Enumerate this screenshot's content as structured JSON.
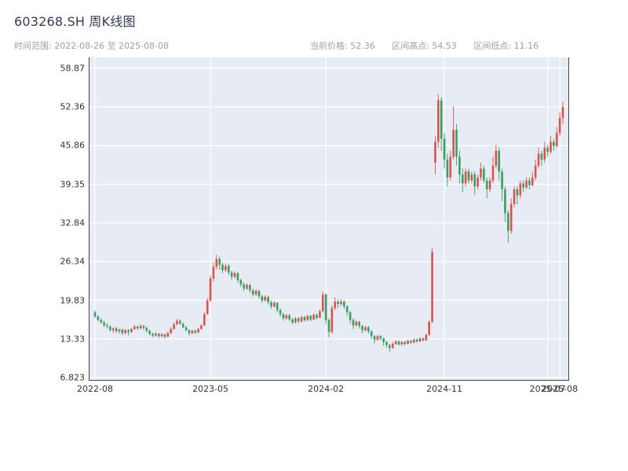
{
  "header": {
    "title": "603268.SH 周K线图",
    "date_range_text": "时间范围: 2022-08-26 至 2025-08-08",
    "stats": {
      "current": "当前价格: 52.36",
      "high": "区间高点: 54.53",
      "low": "区间低点: 11.16"
    }
  },
  "chart_data": {
    "type": "candlestick",
    "title": "603268.SH 周K线图",
    "interval": "weekly",
    "date_range": {
      "start": "2022-08-26",
      "end": "2025-08-08"
    },
    "current_price": 52.36,
    "range_high": 54.53,
    "range_low": 11.16,
    "ylim": [
      6.823,
      58.87
    ],
    "y_ticks": [
      58.87,
      52.36,
      45.86,
      39.35,
      32.84,
      26.34,
      19.83,
      13.33,
      6.823
    ],
    "x_ticks": [
      {
        "label": "2022-08",
        "week": 0
      },
      {
        "label": "2023-05",
        "week": 38
      },
      {
        "label": "2024-02",
        "week": 76
      },
      {
        "label": "2024-11",
        "week": 115
      },
      {
        "label": "2025-07",
        "week": 149
      },
      {
        "label": "2025-08",
        "week": 153
      }
    ],
    "colors": {
      "up": "#d9544d",
      "down": "#3a9e64",
      "plot_bg": "#e6ebf4",
      "grid": "#ffffff",
      "axis": "#444444"
    },
    "legend": {
      "up_means": "上涨(红)",
      "down_means": "下跌(绿)"
    },
    "candles": [
      [
        17.8,
        18.1,
        16.9,
        17.1
      ],
      [
        17.1,
        17.4,
        16.3,
        16.5
      ],
      [
        16.5,
        16.9,
        15.9,
        16.1
      ],
      [
        16.1,
        16.4,
        15.3,
        15.6
      ],
      [
        15.6,
        16.0,
        15.1,
        15.4
      ],
      [
        15.4,
        15.7,
        14.6,
        14.8
      ],
      [
        14.8,
        15.3,
        14.3,
        15.1
      ],
      [
        15.1,
        15.4,
        14.4,
        14.6
      ],
      [
        14.6,
        15.1,
        14.2,
        14.9
      ],
      [
        14.9,
        15.1,
        14.0,
        14.3
      ],
      [
        14.3,
        15.0,
        14.1,
        14.8
      ],
      [
        14.8,
        15.0,
        13.9,
        14.5
      ],
      [
        14.5,
        15.2,
        14.3,
        15.0
      ],
      [
        15.0,
        15.7,
        14.8,
        15.4
      ],
      [
        15.4,
        15.6,
        14.9,
        15.1
      ],
      [
        15.1,
        15.8,
        15.0,
        15.5
      ],
      [
        15.5,
        15.7,
        14.8,
        15.2
      ],
      [
        15.2,
        15.4,
        14.4,
        14.7
      ],
      [
        14.7,
        14.9,
        13.9,
        14.2
      ],
      [
        14.2,
        14.4,
        13.6,
        13.9
      ],
      [
        13.9,
        14.5,
        13.7,
        14.2
      ],
      [
        14.2,
        14.3,
        13.4,
        13.8
      ],
      [
        13.8,
        14.3,
        13.5,
        14.1
      ],
      [
        14.1,
        14.2,
        13.3,
        13.7
      ],
      [
        13.7,
        14.6,
        13.6,
        14.3
      ],
      [
        14.3,
        15.3,
        14.2,
        15.0
      ],
      [
        15.0,
        16.1,
        14.9,
        15.8
      ],
      [
        15.8,
        16.7,
        15.6,
        16.4
      ],
      [
        16.4,
        16.6,
        15.7,
        15.9
      ],
      [
        15.9,
        16.1,
        15.1,
        15.3
      ],
      [
        15.3,
        15.5,
        14.6,
        14.8
      ],
      [
        14.8,
        15.0,
        13.9,
        14.3
      ],
      [
        14.3,
        14.9,
        14.1,
        14.7
      ],
      [
        14.7,
        14.9,
        14.2,
        14.4
      ],
      [
        14.4,
        15.2,
        14.3,
        15.0
      ],
      [
        15.0,
        15.8,
        14.9,
        15.6
      ],
      [
        15.6,
        17.8,
        15.5,
        17.5
      ],
      [
        17.5,
        20.2,
        17.4,
        19.8
      ],
      [
        19.8,
        24.0,
        19.6,
        23.5
      ],
      [
        23.5,
        26.2,
        23.0,
        25.5
      ],
      [
        25.5,
        27.5,
        25.0,
        26.8
      ],
      [
        26.8,
        27.2,
        25.0,
        25.8
      ],
      [
        25.8,
        26.2,
        24.4,
        24.9
      ],
      [
        24.9,
        26.0,
        24.6,
        25.6
      ],
      [
        25.6,
        25.9,
        24.1,
        24.5
      ],
      [
        24.5,
        24.8,
        23.3,
        23.8
      ],
      [
        23.8,
        24.7,
        23.5,
        24.4
      ],
      [
        24.4,
        24.6,
        22.8,
        23.2
      ],
      [
        23.2,
        23.5,
        22.1,
        22.5
      ],
      [
        22.5,
        22.8,
        21.4,
        21.8
      ],
      [
        21.8,
        22.7,
        21.6,
        22.4
      ],
      [
        22.4,
        22.6,
        21.1,
        21.5
      ],
      [
        21.5,
        21.8,
        20.4,
        20.8
      ],
      [
        20.8,
        21.7,
        20.6,
        21.4
      ],
      [
        21.4,
        21.6,
        20.1,
        20.5
      ],
      [
        20.5,
        20.8,
        19.4,
        19.8
      ],
      [
        19.8,
        20.7,
        19.6,
        20.4
      ],
      [
        20.4,
        20.6,
        19.1,
        19.5
      ],
      [
        19.5,
        19.8,
        18.4,
        18.8
      ],
      [
        18.8,
        19.7,
        18.6,
        19.4
      ],
      [
        19.4,
        19.5,
        17.8,
        18.2
      ],
      [
        18.2,
        18.5,
        17.1,
        17.5
      ],
      [
        17.5,
        17.7,
        16.4,
        16.8
      ],
      [
        16.8,
        17.5,
        16.6,
        17.3
      ],
      [
        17.3,
        17.5,
        16.3,
        16.6
      ],
      [
        16.6,
        16.8,
        15.8,
        16.1
      ],
      [
        16.1,
        17.0,
        15.9,
        16.8
      ],
      [
        16.8,
        17.0,
        16.0,
        16.3
      ],
      [
        16.3,
        17.2,
        16.1,
        17.0
      ],
      [
        17.0,
        17.2,
        16.2,
        16.5
      ],
      [
        16.5,
        17.4,
        16.3,
        17.2
      ],
      [
        17.2,
        17.4,
        16.3,
        16.6
      ],
      [
        16.6,
        17.6,
        16.4,
        17.4
      ],
      [
        17.4,
        17.6,
        16.6,
        16.9
      ],
      [
        16.9,
        18.3,
        16.8,
        18.0
      ],
      [
        18.0,
        21.3,
        17.8,
        20.8
      ],
      [
        20.8,
        21.0,
        15.8,
        16.5
      ],
      [
        16.5,
        16.8,
        13.6,
        14.5
      ],
      [
        14.5,
        19.0,
        14.2,
        18.5
      ],
      [
        18.5,
        20.3,
        18.2,
        19.6
      ],
      [
        19.6,
        20.0,
        18.5,
        19.2
      ],
      [
        19.2,
        20.0,
        18.9,
        19.6
      ],
      [
        19.6,
        19.8,
        18.4,
        18.8
      ],
      [
        18.8,
        19.0,
        17.2,
        17.8
      ],
      [
        17.8,
        18.0,
        15.9,
        16.5
      ],
      [
        16.5,
        16.8,
        15.0,
        15.6
      ],
      [
        15.6,
        16.5,
        15.4,
        16.2
      ],
      [
        16.2,
        16.4,
        15.1,
        15.5
      ],
      [
        15.5,
        15.7,
        14.3,
        14.8
      ],
      [
        14.8,
        15.5,
        14.6,
        15.3
      ],
      [
        15.3,
        15.5,
        14.2,
        14.6
      ],
      [
        14.6,
        14.8,
        13.3,
        13.8
      ],
      [
        13.8,
        14.0,
        12.6,
        13.2
      ],
      [
        13.2,
        14.0,
        13.0,
        13.8
      ],
      [
        13.8,
        14.0,
        13.1,
        13.4
      ],
      [
        13.4,
        13.6,
        12.2,
        12.8
      ],
      [
        12.8,
        13.0,
        11.8,
        12.3
      ],
      [
        12.3,
        12.5,
        11.16,
        11.8
      ],
      [
        11.8,
        12.8,
        11.7,
        12.5
      ],
      [
        12.5,
        13.1,
        12.3,
        12.9
      ],
      [
        12.9,
        13.1,
        12.2,
        12.4
      ],
      [
        12.4,
        13.0,
        12.2,
        12.8
      ],
      [
        12.8,
        13.0,
        12.2,
        12.5
      ],
      [
        12.5,
        13.2,
        12.4,
        13.0
      ],
      [
        13.0,
        13.2,
        12.5,
        12.7
      ],
      [
        12.7,
        13.4,
        12.6,
        13.2
      ],
      [
        13.2,
        13.4,
        12.7,
        12.9
      ],
      [
        12.9,
        13.6,
        12.8,
        13.4
      ],
      [
        13.4,
        13.6,
        12.9,
        13.1
      ],
      [
        13.1,
        14.2,
        13.0,
        14.0
      ],
      [
        14.0,
        16.5,
        13.9,
        16.2
      ],
      [
        16.2,
        28.6,
        16.0,
        28.0
      ],
      [
        43.0,
        47.5,
        41.0,
        46.5
      ],
      [
        46.5,
        54.53,
        45.5,
        53.5
      ],
      [
        53.5,
        54.0,
        45.0,
        47.0
      ],
      [
        47.0,
        48.0,
        42.0,
        43.5
      ],
      [
        43.5,
        44.5,
        39.0,
        40.5
      ],
      [
        40.5,
        45.0,
        40.0,
        44.0
      ],
      [
        44.0,
        52.5,
        43.5,
        48.5
      ],
      [
        48.5,
        49.5,
        42.5,
        44.0
      ],
      [
        44.0,
        45.0,
        39.5,
        41.0
      ],
      [
        41.0,
        42.0,
        38.0,
        39.5
      ],
      [
        39.5,
        42.0,
        39.0,
        41.5
      ],
      [
        41.5,
        42.0,
        39.5,
        40.0
      ],
      [
        40.0,
        41.5,
        39.5,
        41.0
      ],
      [
        41.0,
        41.5,
        37.5,
        39.0
      ],
      [
        39.0,
        41.0,
        38.5,
        40.5
      ],
      [
        40.5,
        43.0,
        40.0,
        42.0
      ],
      [
        42.0,
        42.5,
        39.5,
        40.0
      ],
      [
        40.0,
        40.5,
        37.0,
        38.5
      ],
      [
        38.5,
        40.5,
        38.0,
        40.0
      ],
      [
        40.0,
        44.0,
        39.5,
        42.5
      ],
      [
        42.5,
        46.0,
        42.0,
        45.0
      ],
      [
        45.0,
        45.5,
        40.0,
        41.5
      ],
      [
        41.5,
        42.0,
        36.5,
        38.5
      ],
      [
        38.5,
        39.0,
        33.0,
        34.5
      ],
      [
        34.5,
        35.0,
        29.5,
        31.5
      ],
      [
        31.5,
        37.0,
        31.0,
        36.0
      ],
      [
        36.0,
        39.0,
        35.5,
        38.5
      ],
      [
        38.5,
        39.0,
        36.0,
        37.5
      ],
      [
        37.5,
        40.0,
        37.0,
        39.5
      ],
      [
        39.5,
        40.0,
        38.0,
        38.8
      ],
      [
        38.8,
        40.5,
        38.5,
        40.0
      ],
      [
        40.0,
        40.5,
        38.5,
        39.2
      ],
      [
        39.2,
        41.5,
        39.0,
        40.5
      ],
      [
        40.5,
        43.5,
        40.0,
        42.5
      ],
      [
        42.5,
        45.5,
        42.0,
        44.5
      ],
      [
        44.5,
        45.0,
        42.5,
        43.5
      ],
      [
        43.5,
        46.5,
        43.0,
        45.5
      ],
      [
        45.5,
        46.0,
        44.0,
        44.8
      ],
      [
        44.8,
        47.5,
        44.5,
        46.5
      ],
      [
        46.5,
        47.0,
        45.0,
        45.8
      ],
      [
        45.8,
        49.0,
        45.5,
        48.0
      ],
      [
        48.0,
        51.5,
        47.5,
        50.5
      ],
      [
        50.5,
        53.2,
        49.5,
        52.36
      ]
    ]
  }
}
